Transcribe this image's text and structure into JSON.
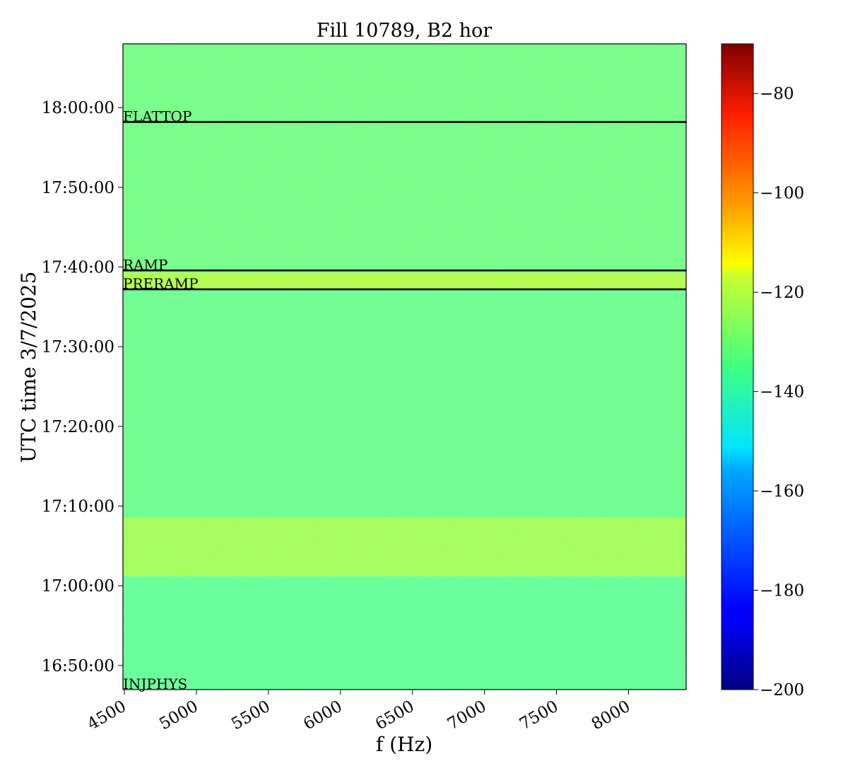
{
  "chart_data": {
    "type": "heatmap",
    "title": "Fill 10789, B2 hor",
    "xlabel": "f (Hz)",
    "ylabel": "UTC time 3/7/2025",
    "xlim": [
      4490,
      8400
    ],
    "x_ticks": [
      4500,
      5000,
      5500,
      6000,
      6500,
      7000,
      7500,
      8000
    ],
    "x_tick_labels": [
      "4500",
      "5000",
      "5500",
      "6000",
      "6500",
      "7000",
      "7500",
      "8000"
    ],
    "ylim_minutes": [
      16.78,
      18.1
    ],
    "y_ticks": [
      {
        "label": "16:50:00",
        "hours": 16.8333
      },
      {
        "label": "17:00:00",
        "hours": 17.0
      },
      {
        "label": "17:10:00",
        "hours": 17.1667
      },
      {
        "label": "17:20:00",
        "hours": 17.3333
      },
      {
        "label": "17:30:00",
        "hours": 17.5
      },
      {
        "label": "17:40:00",
        "hours": 17.6667
      },
      {
        "label": "17:50:00",
        "hours": 17.8333
      },
      {
        "label": "18:00:00",
        "hours": 18.0
      }
    ],
    "y_range_hours": [
      16.7828,
      18.1333
    ],
    "colorbar": {
      "colormap": "jet",
      "range": [
        -200,
        -70
      ],
      "ticks": [
        -80,
        -100,
        -120,
        -140,
        -160,
        -180,
        -200
      ],
      "tick_labels": [
        "−80",
        "−100",
        "−120",
        "−140",
        "−160",
        "−180",
        "−200"
      ]
    },
    "background_level": -140,
    "bands": [
      {
        "from_hours": 16.7828,
        "to_hours": 17.02,
        "level": -138
      },
      {
        "from_hours": 17.02,
        "to_hours": 17.143,
        "level": -130
      },
      {
        "from_hours": 17.143,
        "to_hours": 17.62,
        "level": -137
      },
      {
        "from_hours": 17.62,
        "to_hours": 17.655,
        "level": -128
      },
      {
        "from_hours": 17.655,
        "to_hours": 18.1333,
        "level": -136
      }
    ],
    "events": [
      {
        "label": "FLATTOP",
        "hours": 17.97
      },
      {
        "label": "RAMP",
        "hours": 17.6594
      },
      {
        "label": "PRERAMP",
        "hours": 17.62
      },
      {
        "label": "INJPHYS",
        "hours": 16.7828
      }
    ],
    "grid": false
  }
}
